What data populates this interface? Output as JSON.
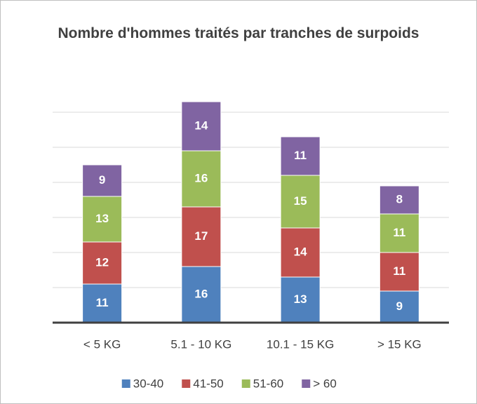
{
  "chart_data": {
    "type": "stacked_bar",
    "title": "Nombre d'hommes traités par tranches de surpoids",
    "categories": [
      "< 5 KG",
      "5.1 - 10 KG",
      "10.1 - 15 KG",
      "> 15 KG"
    ],
    "series": [
      {
        "name": "30-40",
        "color": "#4f81bd",
        "values": [
          11,
          16,
          13,
          9
        ]
      },
      {
        "name": "41-50",
        "color": "#c0504d",
        "values": [
          12,
          17,
          14,
          11
        ]
      },
      {
        "name": "51-60",
        "color": "#9bbb59",
        "values": [
          13,
          16,
          15,
          11
        ]
      },
      {
        "name": "> 60",
        "color": "#8064a2",
        "values": [
          9,
          14,
          11,
          8
        ]
      }
    ],
    "ylim": [
      0,
      70
    ],
    "yticks": [
      0,
      10,
      20,
      30,
      40,
      50,
      60
    ],
    "grid": true
  }
}
